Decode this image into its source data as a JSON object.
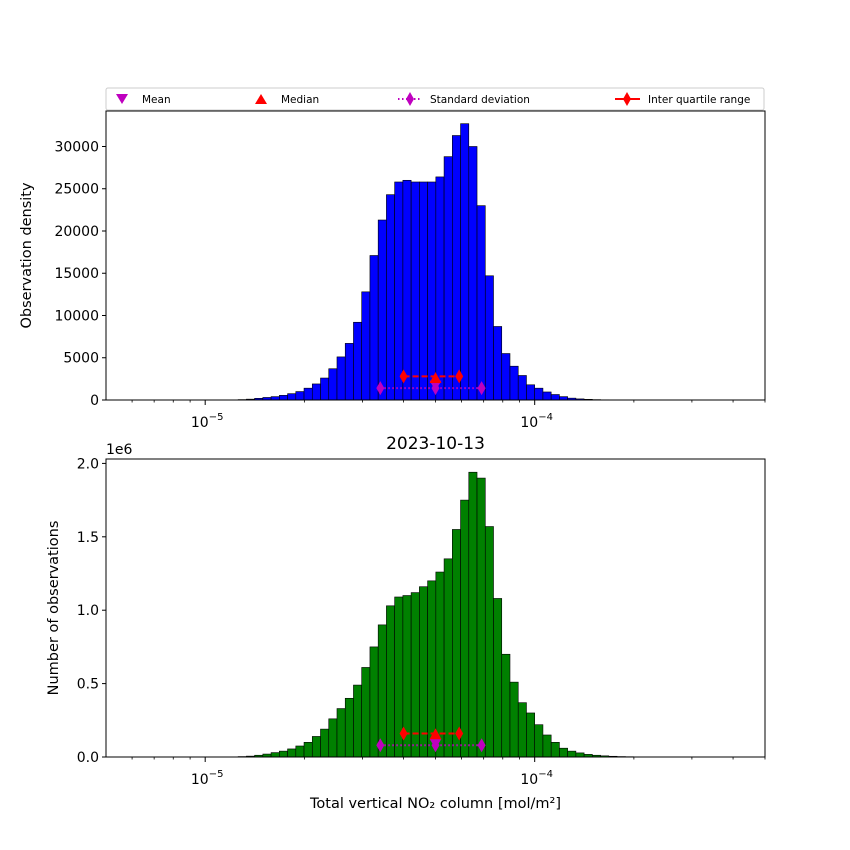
{
  "legend": {
    "entries": [
      {
        "label": "Mean",
        "marker": "triangle-down",
        "color": "#bf00bf"
      },
      {
        "label": "Median",
        "marker": "triangle-up",
        "color": "#ff0000"
      },
      {
        "label": "Standard deviation",
        "marker": "thin-diamond-dotted",
        "color": "#bf00bf"
      },
      {
        "label": "Inter quartile range",
        "marker": "thin-diamond-solid",
        "color": "#ff0000"
      }
    ]
  },
  "chart_data": [
    {
      "type": "bar",
      "title": "",
      "xlabel": "",
      "ylabel": "Observation density",
      "xscale": "log",
      "xlim": [
        5e-06,
        0.0005
      ],
      "ylim": [
        0,
        34200
      ],
      "yticks": [
        0,
        5000,
        10000,
        15000,
        20000,
        25000,
        30000
      ],
      "ytick_labels": [
        "0",
        "5000",
        "10000",
        "15000",
        "20000",
        "25000",
        "30000"
      ],
      "xticks": [
        1e-05,
        0.0001
      ],
      "xtick_labels": [
        "10−5",
        "10−4"
      ],
      "bar_color": "#0000ff",
      "bin_edge_log10_start": -7.0,
      "bin_width_log10": 0.0204,
      "bins_log10_first_center": -4.9,
      "values": [
        0,
        0,
        0,
        0,
        0,
        0,
        0,
        0,
        0,
        0,
        0,
        0,
        0,
        0,
        0,
        0,
        0,
        0,
        0,
        0,
        0,
        0,
        0,
        0,
        50,
        100,
        200,
        300,
        400,
        550,
        750,
        1000,
        1400,
        1900,
        2600,
        3700,
        5100,
        6700,
        9200,
        12800,
        17100,
        21300,
        24300,
        25800,
        26000,
        25800,
        25800,
        25800,
        26400,
        28800,
        31300,
        32700,
        30000,
        23000,
        14700,
        8700,
        5500,
        4000,
        2900,
        1800,
        1400,
        950,
        650,
        400,
        220,
        130,
        80,
        45,
        25,
        15,
        8,
        5,
        2,
        0,
        0,
        0,
        0,
        0,
        0,
        0,
        0,
        0,
        0,
        0,
        0,
        0,
        0,
        0
      ],
      "markers": {
        "mean": {
          "x": 5e-05,
          "y": 1700
        },
        "median": {
          "x": 5e-05,
          "y": 2600
        },
        "std_range": {
          "x": [
            3.4e-05,
            6.9e-05
          ],
          "y": 1400
        },
        "iqr_range": {
          "x": [
            4e-05,
            5.9e-05
          ],
          "y": 2800
        }
      }
    },
    {
      "type": "bar",
      "title": "2023-10-13",
      "xlabel": "Total vertical NO₂ column [mol/m²]",
      "ylabel": "Number of observations",
      "y_offset_label": "1e6",
      "xscale": "log",
      "xlim": [
        5e-06,
        0.0005
      ],
      "ylim": [
        0,
        2.03
      ],
      "yticks": [
        0,
        0.5,
        1.0,
        1.5,
        2.0
      ],
      "ytick_labels": [
        "0.0",
        "0.5",
        "1.0",
        "1.5",
        "2.0"
      ],
      "xticks": [
        1e-05,
        0.0001
      ],
      "xtick_labels": [
        "10−5",
        "10−4"
      ],
      "bar_color": "#008000",
      "values": [
        0,
        0,
        0,
        0,
        0,
        0,
        0,
        0,
        0,
        0,
        0,
        0,
        0,
        0,
        0,
        0,
        0,
        0,
        0,
        0,
        0,
        0,
        0,
        0,
        0.003,
        0.006,
        0.012,
        0.02,
        0.03,
        0.04,
        0.055,
        0.075,
        0.1,
        0.14,
        0.19,
        0.26,
        0.33,
        0.4,
        0.49,
        0.61,
        0.75,
        0.9,
        1.03,
        1.09,
        1.1,
        1.12,
        1.16,
        1.2,
        1.26,
        1.35,
        1.55,
        1.75,
        1.94,
        1.9,
        1.57,
        1.08,
        0.7,
        0.51,
        0.37,
        0.3,
        0.22,
        0.15,
        0.1,
        0.06,
        0.04,
        0.028,
        0.018,
        0.012,
        0.008,
        0.005,
        0.003,
        0.002,
        0.001,
        0,
        0,
        0,
        0,
        0,
        0,
        0,
        0,
        0,
        0,
        0,
        0,
        0,
        0,
        0
      ],
      "markers": {
        "mean": {
          "x": 5e-05,
          "y": 0.09
        },
        "median": {
          "x": 5e-05,
          "y": 0.155
        },
        "std_range": {
          "x": [
            3.4e-05,
            6.9e-05
          ],
          "y": 0.08
        },
        "iqr_range": {
          "x": [
            4e-05,
            5.9e-05
          ],
          "y": 0.16
        }
      }
    }
  ]
}
